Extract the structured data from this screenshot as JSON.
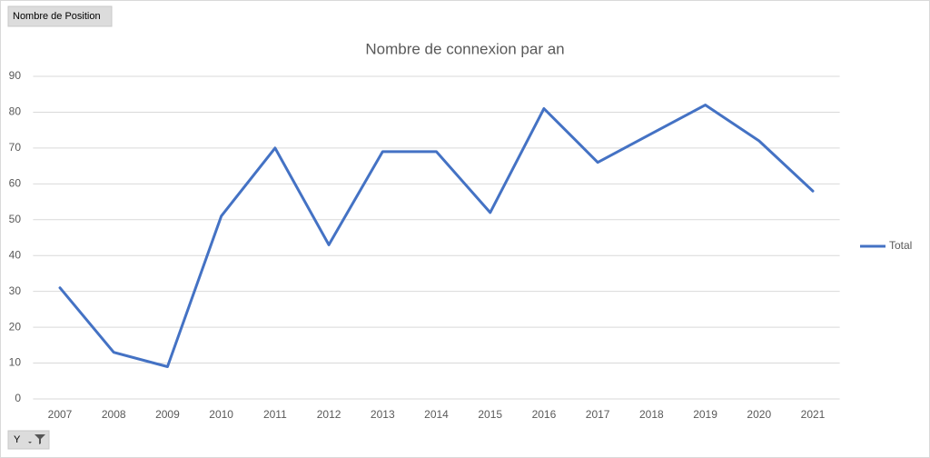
{
  "pivot": {
    "field_button": "Nombre de Position",
    "axis_field": "Y"
  },
  "chart_data": {
    "type": "line",
    "title": "Nombre de connexion par an",
    "categories": [
      "2007",
      "2008",
      "2009",
      "2010",
      "2011",
      "2012",
      "2013",
      "2014",
      "2015",
      "2016",
      "2017",
      "2018",
      "2019",
      "2020",
      "2021"
    ],
    "series": [
      {
        "name": "Total",
        "color": "#4472c4",
        "values": [
          31,
          13,
          9,
          51,
          70,
          43,
          69,
          69,
          52,
          81,
          66,
          74,
          82,
          72,
          58
        ]
      }
    ],
    "ylim": [
      0,
      90
    ],
    "yticks": [
      0,
      10,
      20,
      30,
      40,
      50,
      60,
      70,
      80,
      90
    ],
    "grid": true,
    "legend": "right"
  }
}
